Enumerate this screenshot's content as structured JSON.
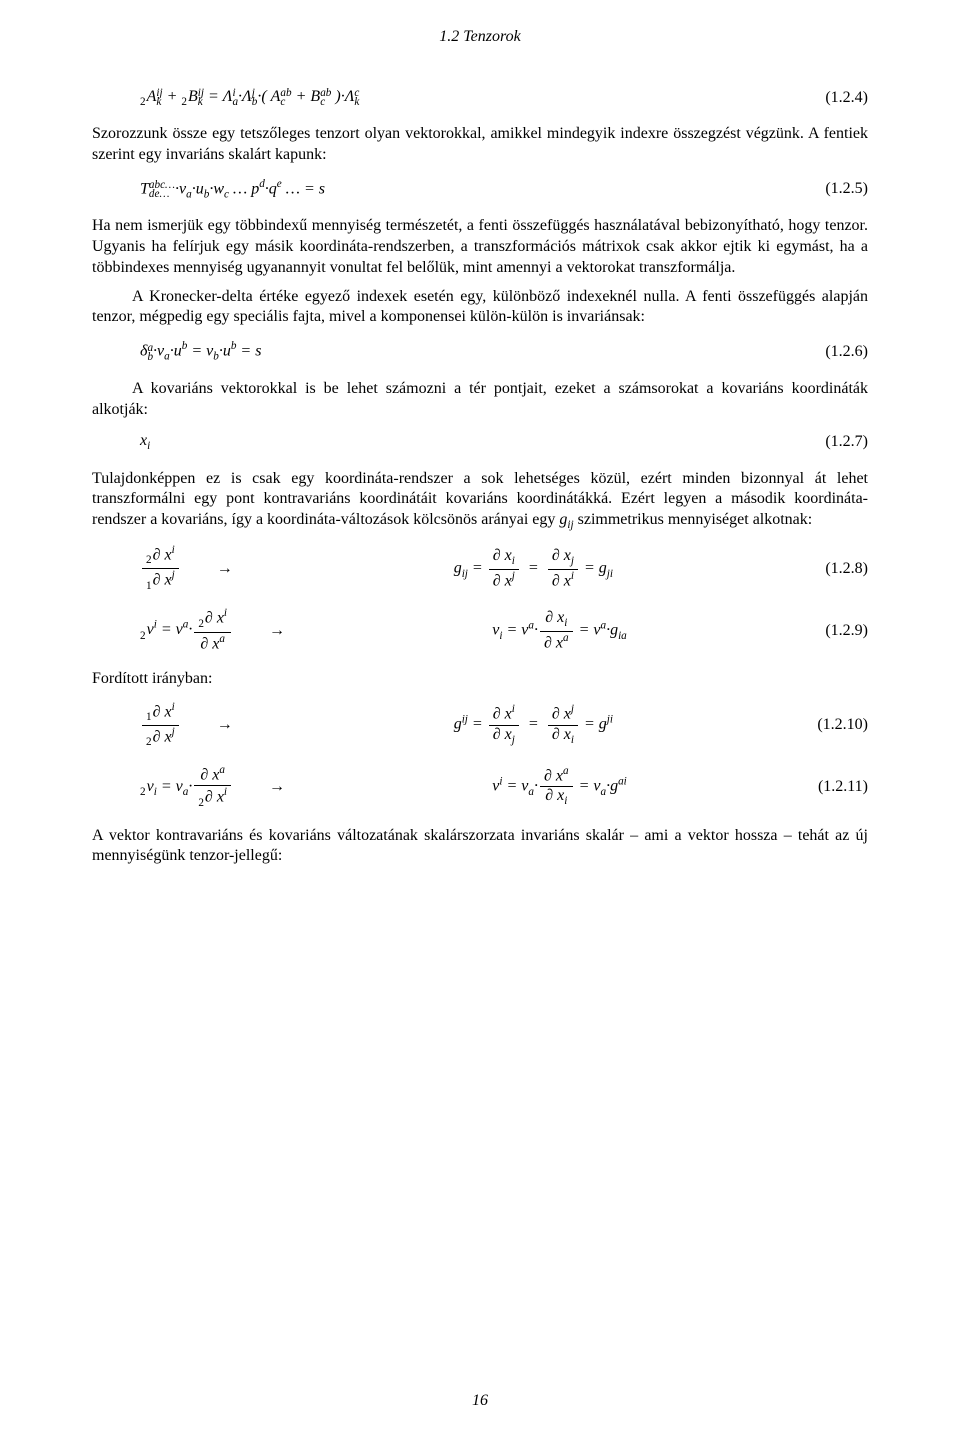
{
  "section_title": "1.2 Tenzorok",
  "eq124": {
    "lhs_html": "<span class='lsub'>2</span><i>A</i><span class='ss'><span class='t'>ij</span><span class='b'>k</span></span> + <span class='lsub'>2</span><i>B</i><span class='ss'><span class='t'>ij</span><span class='b'>k</span></span> = <i>Λ</i><span class='ss'><span class='t'>i</span><span class='b'>a</span></span>·<i>Λ</i><span class='ss'><span class='t'>j</span><span class='b'>b</span></span>·( <i>A</i><span class='ss'><span class='t'>ab</span><span class='b'>c</span></span> + <i>B</i><span class='ss'><span class='t'>ab</span><span class='b'>c</span></span> )·<i>Λ</i><span class='ss'><span class='t'>c</span><span class='b'>k</span></span>",
    "tag": "(1.2.4)"
  },
  "p1": "Szorozzunk össze egy tetszőleges tenzort olyan vektorokkal, amikkel mindegyik indexre összegzést végzünk. A fentiek szerint egy invariáns skalárt kapunk:",
  "eq125": {
    "lhs_html": "<i>T</i><span class='ss'><span class='t'>abc…</span><span class='b'>de…</span></span>·<i>v</i><span class='sub'>a</span>·<i>u</i><span class='sub'>b</span>·<i>w</i><span class='sub'>c</span> … <i>p</i><span class='sup'>d</span>·<i>q</i><span class='sup'>e</span> … = <i>s</i>",
    "tag": "(1.2.5)"
  },
  "p2": "Ha nem ismerjük egy többindexű mennyiség természetét, a fenti összefüggés használatával bebizonyítható, hogy tenzor. Ugyanis ha felírjuk egy másik koordináta-rendszerben, a transzformációs mátrixok csak akkor ejtik ki egymást, ha a többindexes mennyiség ugyanannyit vonultat fel belőlük, mint amennyi a vektorokat transzformálja.",
  "p3": "A Kronecker-delta értéke egyező indexek esetén egy, különböző indexeknél nulla. A fenti összefüggés alapján tenzor, mégpedig egy speciális fajta, mivel a komponensei külön-külön is invariánsak:",
  "eq126": {
    "lhs_html": "<i>δ</i><span class='ss'><span class='t'>a</span><span class='b'>b</span></span>·<i>v</i><span class='sub'>a</span>·<i>u</i><span class='sup'>b</span> = <i>v</i><span class='sub'>b</span>·<i>u</i><span class='sup'>b</span> = <i>s</i>",
    "tag": "(1.2.6)"
  },
  "p4": "A kovariáns vektorokkal is be lehet számozni a tér pontjait, ezeket a számsorokat a kovariáns koordináták alkotják:",
  "eq127": {
    "lhs_html": "<i>x</i><span class='sub'>i</span>",
    "tag": "(1.2.7)"
  },
  "p5_html": "Tulajdonképpen ez is csak egy koordináta-rendszer a sok lehetséges közül, ezért minden bizonnyal át lehet transzformálni egy pont kontravariáns koordinátáit kovariáns koordinátákká. Ezért legyen a második koordináta-rendszer a kovariáns, így a koordináta-változások kölcsönös arányai egy <i>g</i><span class='sub'>ij</span> szimmetrikus mennyiséget alkotnak:",
  "eq128": {
    "lhs_html": "<span class='frac'><span class='num'><span class='lsub'>2</span>∂ <i>x</i><span class='sup'>i</span></span><span class='den'><span class='lsub'>1</span>∂ <i>x</i><span class='sup'>j</span></span></span>",
    "mid_html": "<i>g</i><span class='sub'>ij</span> = <span class='frac'><span class='num'>∂ <i>x</i><span class='sub'>i</span></span><span class='den'>∂ <i>x</i><span class='sup'>j</span></span></span> <span class='upright'>&nbsp;=&nbsp;</span> <span class='frac'><span class='num'>∂ <i>x</i><span class='sub'>j</span></span><span class='den'>∂ <i>x</i><span class='sup'>i</span></span></span> = <i>g</i><span class='sub'>ji</span>",
    "tag": "(1.2.8)"
  },
  "eq129": {
    "lhs_html": "<span class='lsub'>2</span><i>v</i><span class='sup'>i</span> = <i>v</i><span class='sup'>a</span>·<span class='frac'><span class='num'><span class='lsub'>2</span>∂ <i>x</i><span class='sup'>i</span></span><span class='den'>∂ <i>x</i><span class='sup'>a</span></span></span>",
    "mid_html": "<i>v</i><span class='sub'>i</span> = <i>v</i><span class='sup'>a</span>·<span class='frac'><span class='num'>∂ <i>x</i><span class='sub'>i</span></span><span class='den'>∂ <i>x</i><span class='sup'>a</span></span></span> = <i>v</i><span class='sup'>a</span>·<i>g</i><span class='sub'>ia</span>",
    "tag": "(1.2.9)"
  },
  "p6": "Fordított irányban:",
  "eq1210": {
    "lhs_html": "<span class='frac'><span class='num'><span class='lsub'>1</span>∂ <i>x</i><span class='sup'>i</span></span><span class='den'><span class='lsub'>2</span>∂ <i>x</i><span class='sup'>j</span></span></span>",
    "mid_html": "<i>g</i><span class='sup'>ij</span> = <span class='frac'><span class='num'>∂ <i>x</i><span class='sup'>i</span></span><span class='den'>∂ <i>x</i><span class='sub'>j</span></span></span> <span class='upright'>&nbsp;=&nbsp;</span> <span class='frac'><span class='num'>∂ <i>x</i><span class='sup'>j</span></span><span class='den'>∂ <i>x</i><span class='sub'>i</span></span></span> = <i>g</i><span class='sup'>ji</span>",
    "tag": "(1.2.10)"
  },
  "eq1211": {
    "lhs_html": "<span class='lsub'>2</span><i>v</i><span class='sub'>i</span> = <i>v</i><span class='sub'>a</span>·<span class='frac'><span class='num'>∂ <i>x</i><span class='sup'>a</span></span><span class='den'><span class='lsub'>2</span>∂ <i>x</i><span class='sup'>i</span></span></span>",
    "mid_html": "<i>v</i><span class='sup'>i</span> = <i>v</i><span class='sub'>a</span>·<span class='frac'><span class='num'>∂ <i>x</i><span class='sup'>a</span></span><span class='den'>∂ <i>x</i><span class='sub'>i</span></span></span> = <i>v</i><span class='sub'>a</span>·<i>g</i><span class='sup'>ai</span>",
    "tag": "(1.2.11)"
  },
  "p7": "A vektor kontravariáns és kovariáns változatának skalárszorzata invariáns skalár – ami a vektor hossza – tehát az új mennyiségünk tenzor-jellegű:",
  "page_number": "16"
}
